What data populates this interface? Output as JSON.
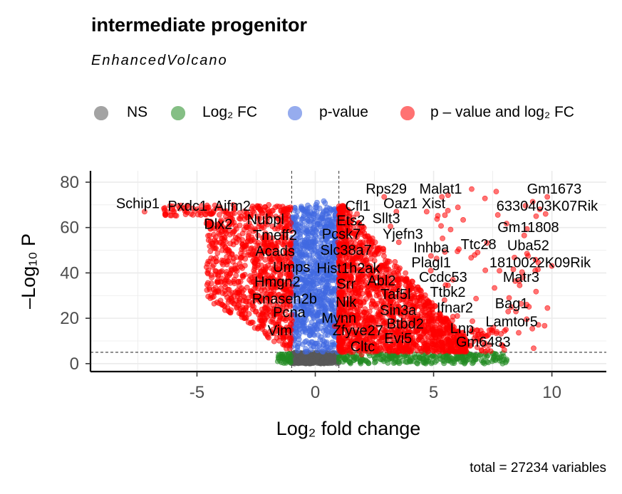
{
  "title": "intermediate progenitor",
  "subtitle": "EnhancedVolcano",
  "caption": "total = 27234 variables",
  "legend": [
    {
      "label": "NS",
      "color": "#595959"
    },
    {
      "label": "Log₂ FC",
      "color": "#228B22"
    },
    {
      "label": "p-value",
      "color": "#4169E1"
    },
    {
      "label": "p – value and log₂ FC",
      "color": "#FF0000"
    }
  ],
  "chart_data": {
    "type": "scatter",
    "title": "intermediate progenitor",
    "subtitle": "EnhancedVolcano",
    "xlabel": "Log₂ fold change",
    "ylabel": "–Log₁₀ P",
    "xlim": [
      -9.5,
      12.3
    ],
    "ylim": [
      -3.5,
      85
    ],
    "xticks": [
      -5,
      0,
      5,
      10
    ],
    "yticks": [
      0,
      20,
      40,
      60,
      80
    ],
    "fc_cutoff": 1,
    "p_cutoff_log10": 5,
    "grid": true,
    "legend_position": "top",
    "caption": "total = 27234 variables",
    "series": [
      {
        "name": "NS",
        "color": "#595959"
      },
      {
        "name": "Log₂ FC",
        "color": "#228B22"
      },
      {
        "name": "p-value",
        "color": "#4169E1"
      },
      {
        "name": "p – value and log₂ FC",
        "color": "#FF0000"
      }
    ],
    "labels": [
      {
        "text": "Schip1",
        "x": -7.5,
        "y": 68.5
      },
      {
        "text": "Pxdc1",
        "x": -5.4,
        "y": 67.5
      },
      {
        "text": "Aifm2",
        "x": -3.5,
        "y": 67.5
      },
      {
        "text": "Nubpl",
        "x": -2.1,
        "y": 61.5
      },
      {
        "text": "Dlx2",
        "x": -4.1,
        "y": 59.5
      },
      {
        "text": "Tmeff2",
        "x": -1.7,
        "y": 54.5
      },
      {
        "text": "Acads",
        "x": -1.7,
        "y": 47.5
      },
      {
        "text": "Umps",
        "x": -1.0,
        "y": 40.5
      },
      {
        "text": "Hmgn2",
        "x": -1.6,
        "y": 34.0
      },
      {
        "text": "Rnaseh2b",
        "x": -1.3,
        "y": 26.5
      },
      {
        "text": "Pcna",
        "x": -1.1,
        "y": 20.5
      },
      {
        "text": "Vim",
        "x": -1.5,
        "y": 12.5
      },
      {
        "text": "Rps29",
        "x": 3.0,
        "y": 75.0
      },
      {
        "text": "Malat1",
        "x": 5.3,
        "y": 75.0
      },
      {
        "text": "Gm1673",
        "x": 10.1,
        "y": 75.0
      },
      {
        "text": "Xist",
        "x": 5.0,
        "y": 68.5
      },
      {
        "text": "Oaz1",
        "x": 3.6,
        "y": 68.5
      },
      {
        "text": "6330403K07Rik",
        "x": 9.8,
        "y": 67.5
      },
      {
        "text": "Cfl1",
        "x": 1.8,
        "y": 67.5
      },
      {
        "text": "Ets2",
        "x": 1.5,
        "y": 61.0
      },
      {
        "text": "Sllt3",
        "x": 3.0,
        "y": 62.0
      },
      {
        "text": "Gm11808",
        "x": 9.0,
        "y": 58.0
      },
      {
        "text": "Pcsk7",
        "x": 1.1,
        "y": 55.0
      },
      {
        "text": "Yjefn3",
        "x": 3.7,
        "y": 55.0
      },
      {
        "text": "Ttc28",
        "x": 6.9,
        "y": 50.5
      },
      {
        "text": "Uba52",
        "x": 9.0,
        "y": 50.0
      },
      {
        "text": "Inhba",
        "x": 4.9,
        "y": 49.0
      },
      {
        "text": "Slc38a7",
        "x": 1.3,
        "y": 48.0
      },
      {
        "text": "Plagl1",
        "x": 4.9,
        "y": 42.5
      },
      {
        "text": "1810022K09Rik",
        "x": 9.5,
        "y": 42.5
      },
      {
        "text": "Hist1h2ak",
        "x": 1.4,
        "y": 40.0
      },
      {
        "text": "Ccdc53",
        "x": 5.4,
        "y": 36.0
      },
      {
        "text": "Matr3",
        "x": 8.7,
        "y": 36.0
      },
      {
        "text": "Abl2",
        "x": 2.8,
        "y": 34.5
      },
      {
        "text": "Srr",
        "x": 1.3,
        "y": 33.0
      },
      {
        "text": "Ttbk2",
        "x": 5.6,
        "y": 29.5
      },
      {
        "text": "Taf5l",
        "x": 3.4,
        "y": 28.5
      },
      {
        "text": "Bag1",
        "x": 8.3,
        "y": 24.5
      },
      {
        "text": "Nlk",
        "x": 1.3,
        "y": 25.0
      },
      {
        "text": "Ifnar2",
        "x": 5.9,
        "y": 22.5
      },
      {
        "text": "Sin3a",
        "x": 3.5,
        "y": 21.5
      },
      {
        "text": "Mynn",
        "x": 1.0,
        "y": 18.0
      },
      {
        "text": "Lamtor5",
        "x": 8.3,
        "y": 16.5
      },
      {
        "text": "Btbd2",
        "x": 3.8,
        "y": 15.5
      },
      {
        "text": "Lnp",
        "x": 6.2,
        "y": 13.5
      },
      {
        "text": "Zfyve27",
        "x": 1.8,
        "y": 12.5
      },
      {
        "text": "Evi5",
        "x": 3.5,
        "y": 9.0
      },
      {
        "text": "Gm6483",
        "x": 7.1,
        "y": 7.5
      },
      {
        "text": "Cltc",
        "x": 2.0,
        "y": 5.5
      }
    ]
  }
}
